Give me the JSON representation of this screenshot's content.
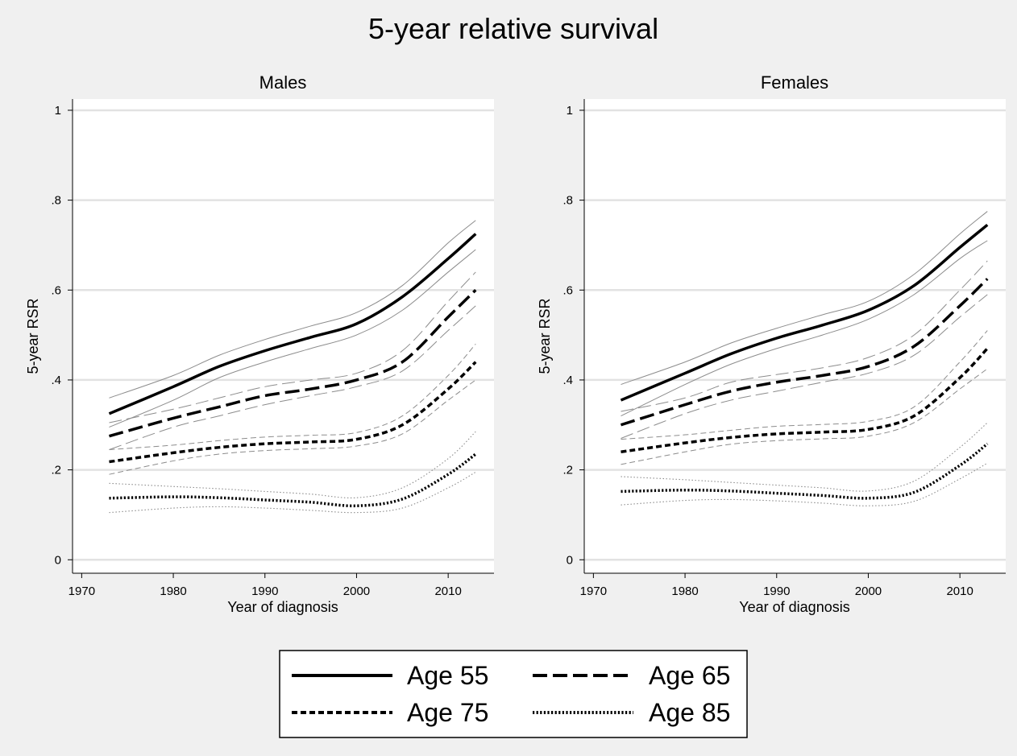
{
  "chart_data": {
    "type": "line",
    "title": "5-year relative survival",
    "x_ticks": [
      1970,
      1980,
      1990,
      2000,
      2010
    ],
    "y_ticks": [
      {
        "value": 0,
        "label": "0"
      },
      {
        "value": 0.2,
        "label": ".2"
      },
      {
        "value": 0.4,
        "label": ".4"
      },
      {
        "value": 0.6,
        "label": ".6"
      },
      {
        "value": 0.8,
        "label": ".8"
      },
      {
        "value": 1,
        "label": "1"
      }
    ],
    "xlim": [
      1969,
      2015
    ],
    "ylim": [
      -0.03,
      1.025
    ],
    "grid": true,
    "legend": {
      "placement": "bottom",
      "entries": [
        {
          "name": "Age 55",
          "style": "solid"
        },
        {
          "name": "Age 65",
          "style": "longdash"
        },
        {
          "name": "Age 75",
          "style": "shortdash"
        },
        {
          "name": "Age 85",
          "style": "dot"
        }
      ]
    },
    "panels": [
      {
        "title": "Males",
        "xlabel": "Year of diagnosis",
        "ylabel": "5-year RSR",
        "x": [
          1973,
          1980,
          1985,
          1990,
          1995,
          2000,
          2005,
          2010,
          2013
        ],
        "series": [
          {
            "name": "Age 55",
            "style": "solid",
            "values": [
              0.325,
              0.385,
              0.43,
              0.465,
              0.495,
              0.525,
              0.585,
              0.67,
              0.725
            ],
            "lower": [
              0.295,
              0.355,
              0.405,
              0.44,
              0.47,
              0.5,
              0.555,
              0.64,
              0.69
            ],
            "upper": [
              0.36,
              0.41,
              0.455,
              0.49,
              0.52,
              0.55,
              0.61,
              0.705,
              0.755
            ]
          },
          {
            "name": "Age 65",
            "style": "longdash",
            "values": [
              0.275,
              0.315,
              0.34,
              0.365,
              0.38,
              0.4,
              0.44,
              0.54,
              0.6
            ],
            "lower": [
              0.245,
              0.295,
              0.32,
              0.345,
              0.365,
              0.385,
              0.42,
              0.51,
              0.565
            ],
            "upper": [
              0.305,
              0.335,
              0.36,
              0.385,
              0.4,
              0.415,
              0.465,
              0.575,
              0.64
            ]
          },
          {
            "name": "Age 75",
            "style": "shortdash",
            "values": [
              0.218,
              0.238,
              0.25,
              0.258,
              0.262,
              0.268,
              0.3,
              0.38,
              0.44
            ],
            "lower": [
              0.19,
              0.22,
              0.235,
              0.243,
              0.247,
              0.253,
              0.28,
              0.355,
              0.4
            ],
            "upper": [
              0.245,
              0.255,
              0.265,
              0.273,
              0.277,
              0.283,
              0.32,
              0.41,
              0.48
            ]
          },
          {
            "name": "Age 85",
            "style": "dot",
            "values": [
              0.137,
              0.14,
              0.138,
              0.133,
              0.128,
              0.12,
              0.135,
              0.19,
              0.235
            ],
            "lower": [
              0.105,
              0.115,
              0.118,
              0.115,
              0.11,
              0.105,
              0.115,
              0.16,
              0.195
            ],
            "upper": [
              0.17,
              0.163,
              0.158,
              0.152,
              0.146,
              0.138,
              0.16,
              0.225,
              0.285
            ]
          }
        ]
      },
      {
        "title": "Females",
        "xlabel": "Year of diagnosis",
        "ylabel": "5-year RSR",
        "x": [
          1973,
          1980,
          1985,
          1990,
          1995,
          2000,
          2005,
          2010,
          2013
        ],
        "series": [
          {
            "name": "Age 55",
            "style": "solid",
            "values": [
              0.355,
              0.415,
              0.458,
              0.493,
              0.522,
              0.555,
              0.61,
              0.695,
              0.745
            ],
            "lower": [
              0.32,
              0.39,
              0.435,
              0.47,
              0.5,
              0.535,
              0.59,
              0.67,
              0.71
            ],
            "upper": [
              0.39,
              0.44,
              0.482,
              0.515,
              0.545,
              0.575,
              0.635,
              0.725,
              0.775
            ]
          },
          {
            "name": "Age 65",
            "style": "longdash",
            "values": [
              0.3,
              0.345,
              0.375,
              0.395,
              0.41,
              0.43,
              0.475,
              0.565,
              0.625
            ],
            "lower": [
              0.27,
              0.325,
              0.355,
              0.375,
              0.395,
              0.415,
              0.455,
              0.54,
              0.59
            ],
            "upper": [
              0.33,
              0.36,
              0.395,
              0.412,
              0.427,
              0.45,
              0.5,
              0.6,
              0.665
            ]
          },
          {
            "name": "Age 75",
            "style": "shortdash",
            "values": [
              0.24,
              0.26,
              0.272,
              0.28,
              0.284,
              0.29,
              0.32,
              0.405,
              0.47
            ],
            "lower": [
              0.212,
              0.24,
              0.257,
              0.265,
              0.269,
              0.275,
              0.305,
              0.38,
              0.425
            ],
            "upper": [
              0.268,
              0.278,
              0.288,
              0.297,
              0.301,
              0.308,
              0.34,
              0.44,
              0.51
            ]
          },
          {
            "name": "Age 85",
            "style": "dot",
            "values": [
              0.152,
              0.155,
              0.153,
              0.148,
              0.143,
              0.137,
              0.15,
              0.21,
              0.258
            ],
            "lower": [
              0.122,
              0.132,
              0.134,
              0.131,
              0.126,
              0.12,
              0.13,
              0.18,
              0.215
            ],
            "upper": [
              0.185,
              0.178,
              0.172,
              0.166,
              0.16,
              0.153,
              0.175,
              0.25,
              0.305
            ]
          }
        ]
      }
    ]
  }
}
